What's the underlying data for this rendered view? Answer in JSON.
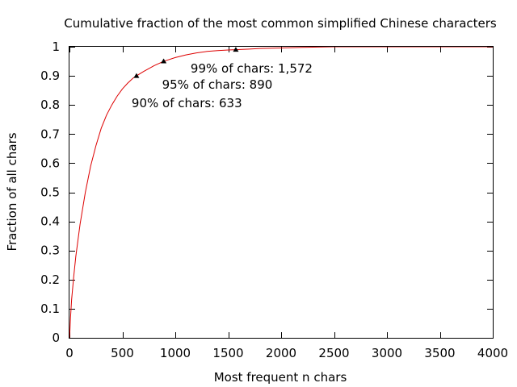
{
  "chart_data": {
    "type": "line",
    "title": "Cumulative fraction of the most common simplified Chinese characters",
    "xlabel": "Most frequent n chars",
    "ylabel": "Fraction of all chars",
    "xlim": [
      0,
      4000
    ],
    "ylim": [
      0,
      1
    ],
    "x_ticks": [
      "0",
      "500",
      "1000",
      "1500",
      "2000",
      "2500",
      "3000",
      "3500",
      "4000"
    ],
    "y_ticks": [
      "0",
      "0.1",
      "0.2",
      "0.3",
      "0.4",
      "0.5",
      "0.6",
      "0.7",
      "0.8",
      "0.9",
      "1"
    ],
    "grid": false,
    "series": [
      {
        "color": "#dd0000",
        "x": [
          0,
          5,
          10,
          20,
          40,
          60,
          100,
          150,
          200,
          250,
          300,
          350,
          400,
          450,
          500,
          550,
          600,
          633,
          700,
          800,
          890,
          1000,
          1100,
          1200,
          1300,
          1400,
          1500,
          1572,
          1700,
          1800,
          2000,
          2200,
          2500,
          2800,
          3000,
          3500,
          4000
        ],
        "y": [
          0,
          0.03,
          0.07,
          0.13,
          0.21,
          0.28,
          0.39,
          0.5,
          0.59,
          0.66,
          0.72,
          0.765,
          0.8,
          0.83,
          0.855,
          0.875,
          0.892,
          0.9,
          0.915,
          0.935,
          0.95,
          0.963,
          0.972,
          0.979,
          0.984,
          0.987,
          0.989,
          0.99,
          0.992,
          0.994,
          0.996,
          0.998,
          1,
          1,
          1,
          1,
          1
        ]
      }
    ],
    "markers": [
      {
        "x": 633,
        "y": 0.9,
        "label": "90% of chars: 633"
      },
      {
        "x": 890,
        "y": 0.95,
        "label": "95% of chars: 890"
      },
      {
        "x": 1572,
        "y": 0.99,
        "label": "99% of chars: 1,572"
      }
    ],
    "marker_color": "#000000",
    "line_color": "#dd0000"
  }
}
